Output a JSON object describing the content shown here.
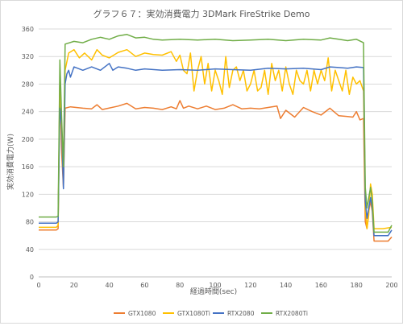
{
  "chart_data": {
    "type": "line",
    "title": "グラフ６７：実効消費電力 3DMark FireStrike Demo",
    "xlabel": "経過時間(sec)",
    "ylabel": "実効消費電力(W)",
    "xlim": [
      0,
      200
    ],
    "ylim": [
      0,
      360
    ],
    "x_ticks": [
      0,
      20,
      40,
      60,
      80,
      100,
      120,
      140,
      160,
      180,
      200
    ],
    "y_ticks": [
      0,
      40,
      80,
      120,
      160,
      200,
      240,
      280,
      320,
      360
    ],
    "grid": "horizontal",
    "legend_position": "bottom",
    "series": [
      {
        "name": "GTX1080",
        "color": "#ED7D31",
        "points": [
          [
            0,
            68
          ],
          [
            10,
            68
          ],
          [
            11,
            70
          ],
          [
            12,
            285
          ],
          [
            13,
            180
          ],
          [
            14,
            130
          ],
          [
            15,
            245
          ],
          [
            18,
            247
          ],
          [
            25,
            245
          ],
          [
            30,
            244
          ],
          [
            33,
            250
          ],
          [
            36,
            243
          ],
          [
            45,
            248
          ],
          [
            50,
            252
          ],
          [
            55,
            244
          ],
          [
            60,
            246
          ],
          [
            65,
            245
          ],
          [
            70,
            243
          ],
          [
            75,
            247
          ],
          [
            78,
            244
          ],
          [
            80,
            256
          ],
          [
            82,
            245
          ],
          [
            85,
            248
          ],
          [
            90,
            244
          ],
          [
            95,
            248
          ],
          [
            100,
            243
          ],
          [
            105,
            245
          ],
          [
            110,
            250
          ],
          [
            115,
            244
          ],
          [
            120,
            245
          ],
          [
            125,
            244
          ],
          [
            130,
            246
          ],
          [
            135,
            248
          ],
          [
            137,
            230
          ],
          [
            140,
            242
          ],
          [
            145,
            232
          ],
          [
            150,
            246
          ],
          [
            155,
            240
          ],
          [
            160,
            235
          ],
          [
            165,
            245
          ],
          [
            170,
            234
          ],
          [
            175,
            233
          ],
          [
            178,
            232
          ],
          [
            180,
            240
          ],
          [
            182,
            228
          ],
          [
            184,
            230
          ],
          [
            185,
            80
          ],
          [
            186,
            70
          ],
          [
            187,
            95
          ],
          [
            188,
            110
          ],
          [
            189,
            95
          ],
          [
            190,
            52
          ],
          [
            198,
            52
          ],
          [
            200,
            58
          ]
        ]
      },
      {
        "name": "GTX1080Ti",
        "color": "#FFC000",
        "points": [
          [
            0,
            72
          ],
          [
            10,
            72
          ],
          [
            11,
            75
          ],
          [
            12,
            290
          ],
          [
            13,
            210
          ],
          [
            14,
            140
          ],
          [
            15,
            300
          ],
          [
            17,
            325
          ],
          [
            20,
            330
          ],
          [
            23,
            318
          ],
          [
            26,
            325
          ],
          [
            30,
            315
          ],
          [
            33,
            330
          ],
          [
            36,
            322
          ],
          [
            40,
            318
          ],
          [
            45,
            326
          ],
          [
            50,
            330
          ],
          [
            55,
            320
          ],
          [
            60,
            325
          ],
          [
            65,
            323
          ],
          [
            70,
            322
          ],
          [
            75,
            327
          ],
          [
            78,
            313
          ],
          [
            80,
            322
          ],
          [
            82,
            300
          ],
          [
            84,
            295
          ],
          [
            86,
            325
          ],
          [
            88,
            270
          ],
          [
            90,
            300
          ],
          [
            92,
            320
          ],
          [
            94,
            280
          ],
          [
            96,
            310
          ],
          [
            98,
            270
          ],
          [
            100,
            300
          ],
          [
            102,
            285
          ],
          [
            104,
            265
          ],
          [
            106,
            320
          ],
          [
            108,
            275
          ],
          [
            110,
            300
          ],
          [
            112,
            305
          ],
          [
            114,
            285
          ],
          [
            116,
            300
          ],
          [
            118,
            270
          ],
          [
            120,
            280
          ],
          [
            122,
            300
          ],
          [
            124,
            270
          ],
          [
            126,
            275
          ],
          [
            128,
            300
          ],
          [
            130,
            265
          ],
          [
            132,
            310
          ],
          [
            134,
            285
          ],
          [
            136,
            300
          ],
          [
            138,
            270
          ],
          [
            140,
            305
          ],
          [
            142,
            280
          ],
          [
            144,
            265
          ],
          [
            146,
            300
          ],
          [
            148,
            285
          ],
          [
            150,
            280
          ],
          [
            152,
            300
          ],
          [
            154,
            270
          ],
          [
            156,
            300
          ],
          [
            158,
            280
          ],
          [
            160,
            300
          ],
          [
            162,
            285
          ],
          [
            164,
            318
          ],
          [
            166,
            270
          ],
          [
            168,
            300
          ],
          [
            170,
            285
          ],
          [
            172,
            270
          ],
          [
            174,
            300
          ],
          [
            176,
            265
          ],
          [
            178,
            290
          ],
          [
            180,
            280
          ],
          [
            182,
            285
          ],
          [
            184,
            270
          ],
          [
            185,
            100
          ],
          [
            186,
            70
          ],
          [
            187,
            90
          ],
          [
            188,
            135
          ],
          [
            189,
            120
          ],
          [
            190,
            70
          ],
          [
            195,
            70
          ],
          [
            200,
            72
          ]
        ]
      },
      {
        "name": "RTX2080",
        "color": "#4472C4",
        "points": [
          [
            0,
            78
          ],
          [
            10,
            78
          ],
          [
            11,
            80
          ],
          [
            12,
            245
          ],
          [
            13,
            220
          ],
          [
            14,
            128
          ],
          [
            15,
            280
          ],
          [
            16,
            295
          ],
          [
            17,
            300
          ],
          [
            18,
            290
          ],
          [
            20,
            305
          ],
          [
            25,
            300
          ],
          [
            30,
            305
          ],
          [
            35,
            300
          ],
          [
            40,
            310
          ],
          [
            42,
            300
          ],
          [
            45,
            305
          ],
          [
            50,
            303
          ],
          [
            55,
            300
          ],
          [
            60,
            302
          ],
          [
            70,
            300
          ],
          [
            80,
            301
          ],
          [
            90,
            300
          ],
          [
            100,
            302
          ],
          [
            110,
            301
          ],
          [
            120,
            300
          ],
          [
            130,
            303
          ],
          [
            140,
            302
          ],
          [
            150,
            303
          ],
          [
            160,
            301
          ],
          [
            165,
            305
          ],
          [
            170,
            304
          ],
          [
            175,
            303
          ],
          [
            180,
            305
          ],
          [
            184,
            304
          ],
          [
            185,
            110
          ],
          [
            186,
            85
          ],
          [
            187,
            100
          ],
          [
            188,
            115
          ],
          [
            189,
            100
          ],
          [
            190,
            60
          ],
          [
            198,
            60
          ],
          [
            200,
            68
          ]
        ]
      },
      {
        "name": "RTX2080Ti",
        "color": "#70AD47",
        "points": [
          [
            0,
            87
          ],
          [
            10,
            87
          ],
          [
            11,
            88
          ],
          [
            12,
            315
          ],
          [
            13,
            230
          ],
          [
            14,
            160
          ],
          [
            15,
            338
          ],
          [
            20,
            342
          ],
          [
            25,
            340
          ],
          [
            30,
            345
          ],
          [
            35,
            348
          ],
          [
            40,
            345
          ],
          [
            45,
            350
          ],
          [
            50,
            352
          ],
          [
            55,
            347
          ],
          [
            60,
            348
          ],
          [
            65,
            345
          ],
          [
            70,
            344
          ],
          [
            80,
            345
          ],
          [
            90,
            344
          ],
          [
            100,
            345
          ],
          [
            110,
            343
          ],
          [
            120,
            344
          ],
          [
            130,
            345
          ],
          [
            140,
            343
          ],
          [
            150,
            345
          ],
          [
            160,
            344
          ],
          [
            165,
            347
          ],
          [
            170,
            345
          ],
          [
            175,
            343
          ],
          [
            180,
            345
          ],
          [
            184,
            340
          ],
          [
            185,
            130
          ],
          [
            186,
            100
          ],
          [
            187,
            115
          ],
          [
            188,
            130
          ],
          [
            189,
            110
          ],
          [
            190,
            65
          ],
          [
            198,
            65
          ],
          [
            200,
            75
          ]
        ]
      }
    ]
  }
}
